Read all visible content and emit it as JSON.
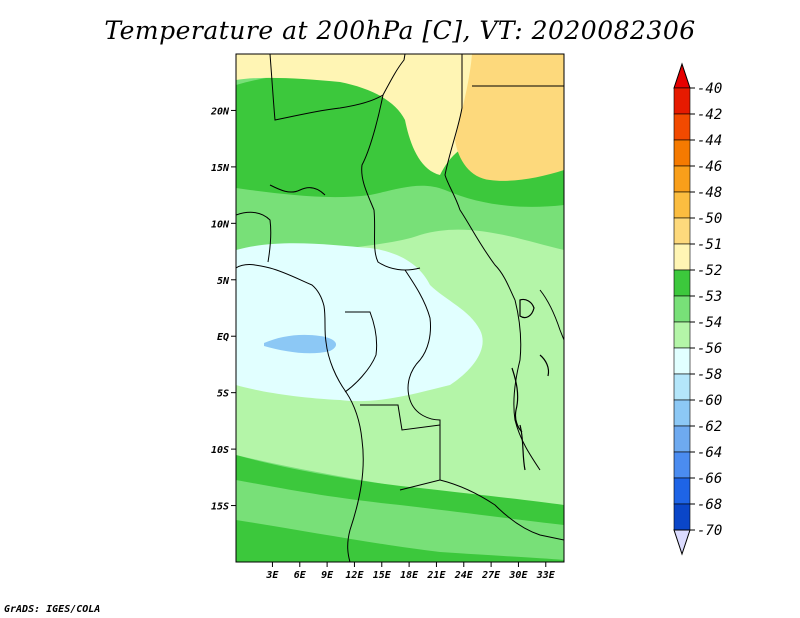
{
  "title": "Temperature at 200hPa [C], VT: 2020082306",
  "credit": "GrADS: IGES/COLA",
  "map": {
    "lon_range": [
      -1,
      35
    ],
    "lat_range": [
      -20,
      25
    ],
    "x_ticks": [
      {
        "value": 3,
        "label": "3E"
      },
      {
        "value": 6,
        "label": "6E"
      },
      {
        "value": 9,
        "label": "9E"
      },
      {
        "value": 12,
        "label": "12E"
      },
      {
        "value": 15,
        "label": "15E"
      },
      {
        "value": 18,
        "label": "18E"
      },
      {
        "value": 21,
        "label": "21E"
      },
      {
        "value": 24,
        "label": "24E"
      },
      {
        "value": 27,
        "label": "27E"
      },
      {
        "value": 30,
        "label": "30E"
      },
      {
        "value": 33,
        "label": "33E"
      }
    ],
    "y_ticks": [
      {
        "value": 20,
        "label": "20N"
      },
      {
        "value": 15,
        "label": "15N"
      },
      {
        "value": 10,
        "label": "10N"
      },
      {
        "value": 5,
        "label": "5N"
      },
      {
        "value": 0,
        "label": "EQ"
      },
      {
        "value": -5,
        "label": "5S"
      },
      {
        "value": -10,
        "label": "10S"
      },
      {
        "value": -15,
        "label": "15S"
      }
    ]
  },
  "colorbar": {
    "levels": [
      {
        "label": "-40",
        "color": "#e61a00"
      },
      {
        "label": "-42",
        "color": "#f24a00"
      },
      {
        "label": "-44",
        "color": "#f57a00"
      },
      {
        "label": "-46",
        "color": "#f99f1a"
      },
      {
        "label": "-48",
        "color": "#fbbd40"
      },
      {
        "label": "-50",
        "color": "#fdd97c"
      },
      {
        "label": "-51",
        "color": "#fff5b4"
      },
      {
        "label": "-52",
        "color": "#3cc83c"
      },
      {
        "label": "-53",
        "color": "#78e078"
      },
      {
        "label": "-54",
        "color": "#b4f5a8"
      },
      {
        "label": "-56",
        "color": "#e1ffff"
      },
      {
        "label": "-58",
        "color": "#b4e6fa"
      },
      {
        "label": "-60",
        "color": "#8cc8f5"
      },
      {
        "label": "-62",
        "color": "#6eaaf0"
      },
      {
        "label": "-64",
        "color": "#4b8cf0"
      },
      {
        "label": "-66",
        "color": "#1e64e6"
      },
      {
        "label": "-68",
        "color": "#0a46c8"
      },
      {
        "label": "-70",
        "color": "#0a1e9b"
      }
    ],
    "top_color": "#e60000",
    "bottom_color": "#dcdcff"
  }
}
